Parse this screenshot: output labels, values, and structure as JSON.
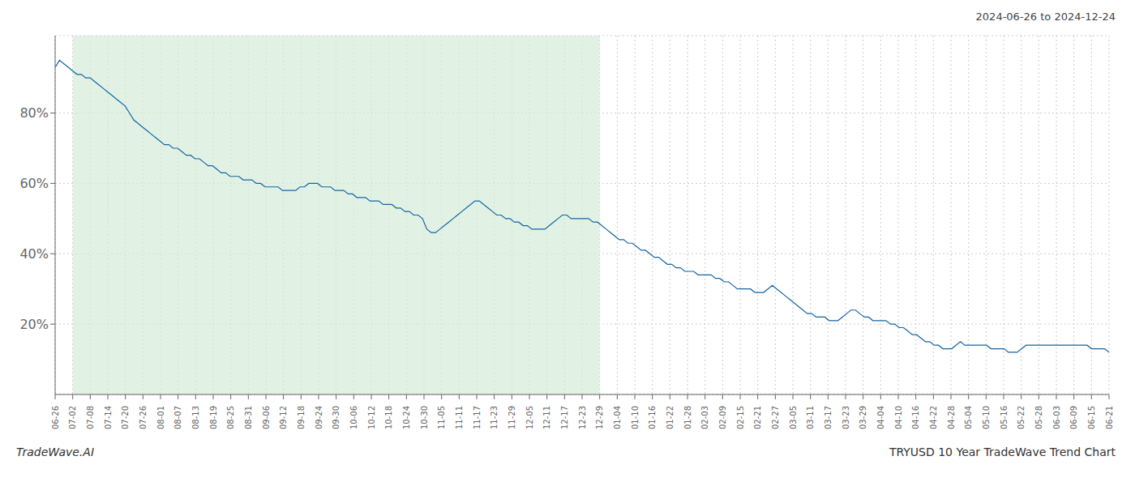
{
  "chart_data": {
    "type": "line",
    "title": "2024-06-26 to 2024-12-24",
    "annotations": [
      "TradeWave.AI",
      "TRYUSD 10 Year TradeWave Trend Chart"
    ],
    "color": "#1464a5",
    "grid": true,
    "xlim": [
      0,
      241
    ],
    "ylim": [
      0,
      102
    ],
    "yticks": [
      {
        "value": 20,
        "label": "20%"
      },
      {
        "value": 40,
        "label": "40%"
      },
      {
        "value": 60,
        "label": "60%"
      },
      {
        "value": 80,
        "label": "80%"
      }
    ],
    "shade": {
      "x_start": 4.0166667,
      "x_end": 124.5166667,
      "color": "#d4edda"
    },
    "xticks": [
      {
        "value": 0,
        "label": "06-26"
      },
      {
        "value": 4.0166667,
        "label": "07-02"
      },
      {
        "value": 8.0333333,
        "label": "07-08"
      },
      {
        "value": 12.05,
        "label": "07-14"
      },
      {
        "value": 16.0666667,
        "label": "07-20"
      },
      {
        "value": 20.0833333,
        "label": "07-26"
      },
      {
        "value": 24.1,
        "label": "08-01"
      },
      {
        "value": 28.1166667,
        "label": "08-07"
      },
      {
        "value": 32.1333333,
        "label": "08-13"
      },
      {
        "value": 36.15,
        "label": "08-19"
      },
      {
        "value": 40.1666667,
        "label": "08-25"
      },
      {
        "value": 44.1833333,
        "label": "08-31"
      },
      {
        "value": 48.2,
        "label": "09-06"
      },
      {
        "value": 52.2166667,
        "label": "09-12"
      },
      {
        "value": 56.2333333,
        "label": "09-18"
      },
      {
        "value": 60.25,
        "label": "09-24"
      },
      {
        "value": 64.2666667,
        "label": "09-30"
      },
      {
        "value": 68.2833333,
        "label": "10-06"
      },
      {
        "value": 72.3,
        "label": "10-12"
      },
      {
        "value": 76.3166667,
        "label": "10-18"
      },
      {
        "value": 80.3333333,
        "label": "10-24"
      },
      {
        "value": 84.35,
        "label": "10-30"
      },
      {
        "value": 88.3666667,
        "label": "11-05"
      },
      {
        "value": 92.3833333,
        "label": "11-11"
      },
      {
        "value": 96.4,
        "label": "11-17"
      },
      {
        "value": 100.4166667,
        "label": "11-23"
      },
      {
        "value": 104.4333333,
        "label": "11-29"
      },
      {
        "value": 108.45,
        "label": "12-05"
      },
      {
        "value": 112.4666667,
        "label": "12-11"
      },
      {
        "value": 116.4833333,
        "label": "12-17"
      },
      {
        "value": 120.5,
        "label": "12-23"
      },
      {
        "value": 124.5166667,
        "label": "12-29"
      },
      {
        "value": 128.5333333,
        "label": "01-04"
      },
      {
        "value": 132.55,
        "label": "01-10"
      },
      {
        "value": 136.5666667,
        "label": "01-16"
      },
      {
        "value": 140.5833333,
        "label": "01-22"
      },
      {
        "value": 144.6,
        "label": "01-28"
      },
      {
        "value": 148.6166667,
        "label": "02-03"
      },
      {
        "value": 152.6333333,
        "label": "02-09"
      },
      {
        "value": 156.65,
        "label": "02-15"
      },
      {
        "value": 160.6666667,
        "label": "02-21"
      },
      {
        "value": 164.6833333,
        "label": "02-27"
      },
      {
        "value": 168.7,
        "label": "03-05"
      },
      {
        "value": 172.7166667,
        "label": "03-11"
      },
      {
        "value": 176.7333333,
        "label": "03-17"
      },
      {
        "value": 180.75,
        "label": "03-23"
      },
      {
        "value": 184.7666667,
        "label": "03-29"
      },
      {
        "value": 188.7833333,
        "label": "04-04"
      },
      {
        "value": 192.8,
        "label": "04-10"
      },
      {
        "value": 196.8166667,
        "label": "04-16"
      },
      {
        "value": 200.8333333,
        "label": "04-22"
      },
      {
        "value": 204.85,
        "label": "04-28"
      },
      {
        "value": 208.8666667,
        "label": "05-04"
      },
      {
        "value": 212.8833333,
        "label": "05-10"
      },
      {
        "value": 216.9,
        "label": "05-16"
      },
      {
        "value": 220.9166667,
        "label": "05-22"
      },
      {
        "value": 224.9333333,
        "label": "05-28"
      },
      {
        "value": 228.95,
        "label": "06-03"
      },
      {
        "value": 232.9666667,
        "label": "06-09"
      },
      {
        "value": 236.9833333,
        "label": "06-15"
      },
      {
        "value": 241,
        "label": "06-21"
      }
    ],
    "x": [
      0,
      1,
      2,
      3,
      4,
      5,
      6,
      7,
      8,
      9,
      10,
      11,
      12,
      13,
      14,
      15,
      16,
      17,
      18,
      19,
      20,
      21,
      22,
      23,
      24,
      25,
      26,
      27,
      28,
      29,
      30,
      31,
      32,
      33,
      34,
      35,
      36,
      37,
      38,
      39,
      40,
      41,
      42,
      43,
      44,
      45,
      46,
      47,
      48,
      49,
      50,
      51,
      52,
      53,
      54,
      55,
      56,
      57,
      58,
      59,
      60,
      61,
      62,
      63,
      64,
      65,
      66,
      67,
      68,
      69,
      70,
      71,
      72,
      73,
      74,
      75,
      76,
      77,
      78,
      79,
      80,
      81,
      82,
      83,
      84,
      85,
      86,
      87,
      88,
      89,
      90,
      91,
      92,
      93,
      94,
      95,
      96,
      97,
      98,
      99,
      100,
      101,
      102,
      103,
      104,
      105,
      106,
      107,
      108,
      109,
      110,
      111,
      112,
      113,
      114,
      115,
      116,
      117,
      118,
      119,
      120,
      121,
      122,
      123,
      124,
      125,
      126,
      127,
      128,
      129,
      130,
      131,
      132,
      133,
      134,
      135,
      136,
      137,
      138,
      139,
      140,
      141,
      142,
      143,
      144,
      145,
      146,
      147,
      148,
      149,
      150,
      151,
      152,
      153,
      154,
      155,
      156,
      157,
      158,
      159,
      160,
      161,
      162,
      163,
      164,
      165,
      166,
      167,
      168,
      169,
      170,
      171,
      172,
      173,
      174,
      175,
      176,
      177,
      178,
      179,
      180,
      181,
      182,
      183,
      184,
      185,
      186,
      187,
      188,
      189,
      190,
      191,
      192,
      193,
      194,
      195,
      196,
      197,
      198,
      199,
      200,
      201,
      202,
      203,
      204,
      205,
      206,
      207,
      208,
      209,
      210,
      211,
      212,
      213,
      214,
      215,
      216,
      217,
      218,
      219,
      220,
      221,
      222,
      223,
      224,
      225,
      226,
      227,
      228,
      229,
      230,
      231,
      232,
      233,
      234,
      235,
      236,
      237,
      238,
      239,
      240,
      241
    ],
    "values": [
      93,
      95,
      94,
      93,
      92,
      91,
      91,
      90,
      90,
      89,
      88,
      87,
      86,
      85,
      84,
      83,
      82,
      80,
      78,
      77,
      76,
      75,
      74,
      73,
      72,
      71,
      71,
      70,
      70,
      69,
      68,
      68,
      67,
      67,
      66,
      65,
      65,
      64,
      63,
      63,
      62,
      62,
      62,
      61,
      61,
      61,
      60,
      60,
      59,
      59,
      59,
      59,
      58,
      58,
      58,
      58,
      59,
      59,
      60,
      60,
      60,
      59,
      59,
      59,
      58,
      58,
      58,
      57,
      57,
      56,
      56,
      56,
      55,
      55,
      55,
      54,
      54,
      54,
      53,
      53,
      52,
      52,
      51,
      51,
      50,
      47,
      46,
      46,
      47,
      48,
      49,
      50,
      51,
      52,
      53,
      54,
      55,
      55,
      54,
      53,
      52,
      51,
      51,
      50,
      50,
      49,
      49,
      48,
      48,
      47,
      47,
      47,
      47,
      48,
      49,
      50,
      51,
      51,
      50,
      50,
      50,
      50,
      50,
      49,
      49,
      48,
      47,
      46,
      45,
      44,
      44,
      43,
      43,
      42,
      41,
      41,
      40,
      39,
      39,
      38,
      37,
      37,
      36,
      36,
      35,
      35,
      35,
      34,
      34,
      34,
      34,
      33,
      33,
      32,
      32,
      31,
      30,
      30,
      30,
      30,
      29,
      29,
      29,
      30,
      31,
      30,
      29,
      28,
      27,
      26,
      25,
      24,
      23,
      23,
      22,
      22,
      22,
      21,
      21,
      21,
      22,
      23,
      24,
      24,
      23,
      22,
      22,
      21,
      21,
      21,
      21,
      20,
      20,
      19,
      19,
      18,
      17,
      17,
      16,
      15,
      15,
      14,
      14,
      13,
      13,
      13,
      14,
      15,
      14,
      14,
      14,
      14,
      14,
      14,
      13,
      13,
      13,
      13,
      12,
      12,
      12,
      13,
      14,
      14,
      14,
      14,
      14,
      14,
      14,
      14,
      14,
      14,
      14,
      14,
      14,
      14,
      14,
      13,
      13,
      13,
      13,
      12
    ]
  }
}
